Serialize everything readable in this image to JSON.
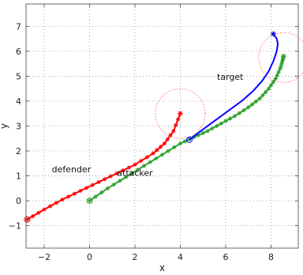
{
  "chart_data": {
    "type": "line",
    "title": "",
    "xlabel": "x",
    "ylabel": "y",
    "xlim": [
      -2.8,
      9.2
    ],
    "ylim": [
      -1.9,
      7.9
    ],
    "x_ticks": [
      -2,
      0,
      2,
      4,
      6,
      8
    ],
    "y_ticks": [
      -1,
      0,
      1,
      2,
      3,
      4,
      5,
      6,
      7
    ],
    "x_tick_labels": [
      "−2",
      "0",
      "2",
      "4",
      "6",
      "8"
    ],
    "y_tick_labels": [
      "−1",
      "0",
      "1",
      "2",
      "3",
      "4",
      "5",
      "6",
      "7"
    ],
    "grid": true,
    "legend": "none",
    "series": [
      {
        "name": "defender",
        "color": "#ff0000",
        "line_style": "solid",
        "marker": "asterisk",
        "start_marker": "circle",
        "end_marker": "asterisk",
        "x": [
          -2.75,
          -2.0,
          -1.2,
          -0.4,
          0.4,
          1.2,
          2.0,
          2.8,
          3.3,
          3.7,
          4.0
        ],
        "y": [
          -0.75,
          -0.35,
          0.05,
          0.4,
          0.75,
          1.1,
          1.45,
          1.9,
          2.3,
          2.8,
          3.5
        ]
      },
      {
        "name": "attacker",
        "color": "#2ca02c",
        "line_style": "solid",
        "marker": "asterisk",
        "start_marker": "circle",
        "end_marker": "asterisk",
        "x": [
          0.0,
          0.8,
          1.6,
          2.4,
          3.2,
          4.0,
          4.6,
          5.2,
          5.8,
          6.4,
          7.0,
          7.5,
          7.9,
          8.2,
          8.4,
          8.5,
          8.55
        ],
        "y": [
          0.0,
          0.5,
          0.95,
          1.4,
          1.85,
          2.3,
          2.55,
          2.8,
          3.1,
          3.4,
          3.75,
          4.1,
          4.5,
          4.9,
          5.3,
          5.6,
          5.8
        ]
      },
      {
        "name": "target",
        "color": "#0000ff",
        "line_style": "solid",
        "marker": "none",
        "start_marker": "circle",
        "end_marker": "asterisk",
        "x": [
          4.4,
          4.9,
          5.5,
          6.1,
          6.7,
          7.2,
          7.6,
          7.9,
          8.1,
          8.25,
          8.3,
          8.25,
          8.1
        ],
        "y": [
          2.45,
          2.8,
          3.2,
          3.6,
          4.0,
          4.4,
          4.8,
          5.2,
          5.6,
          6.0,
          6.3,
          6.5,
          6.7
        ]
      }
    ],
    "ranges": [
      {
        "center_x": 4.0,
        "center_y": 3.5,
        "radius": 1.0,
        "color": "#ff0000",
        "style": "dotted"
      },
      {
        "center_x": 8.55,
        "center_y": 5.75,
        "radius": 1.0,
        "color": "#ff0000",
        "style": "dotted"
      }
    ],
    "annotations": [
      {
        "text": "defender",
        "x": -0.8,
        "y": 1.15
      },
      {
        "text": "attacker",
        "x": 2.0,
        "y": 1.0
      },
      {
        "text": "target",
        "x": 6.2,
        "y": 4.85
      }
    ]
  }
}
